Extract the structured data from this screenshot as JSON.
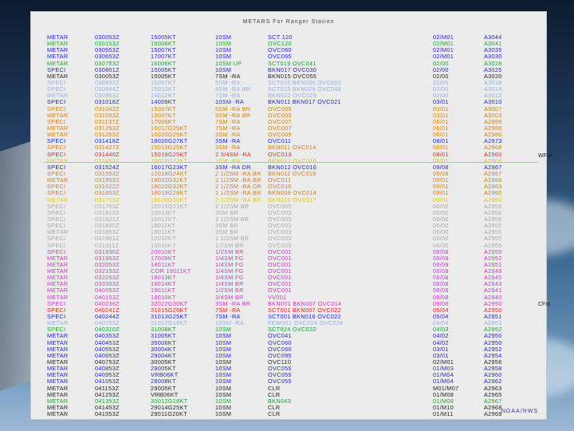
{
  "header": {
    "title": "METARS For Ranger Station"
  },
  "footer": {
    "credit": "NOAA/NWS"
  },
  "markers": {
    "wfnt": "WFnt",
    "cfnt": "CFnt"
  },
  "colors": {
    "black": "#222222",
    "blue": "#2424d6",
    "green": "#17a82a",
    "orange": "#d87b15",
    "red": "#e8261a",
    "pale_blue": "#8fb0e6",
    "gray": "#a8a8a8",
    "magenta": "#cc3cc8",
    "yellow": "#e3c22a"
  },
  "rows": [
    {
      "type": "METAR",
      "time": "030053Z",
      "wind": "15005KT",
      "vis": "10SM",
      "wx": "SCT 120",
      "temp": "02/M01",
      "alt": "A3044",
      "color": "blue"
    },
    {
      "type": "METAR",
      "time": "030153Z",
      "wind": "16008KT",
      "vis": "10SM",
      "wx": "OVC120",
      "temp": "02/M01",
      "alt": "A3041",
      "color": "green"
    },
    {
      "type": "METAR",
      "time": "030553Z",
      "wind": "15007KT",
      "vis": "10SM",
      "wx": "OVC060",
      "temp": "02/M01",
      "alt": "A3035",
      "color": "blue"
    },
    {
      "type": "METAR",
      "time": "030653Z",
      "wind": "17007KT",
      "vis": "10SM",
      "wx": "OVC065",
      "temp": "02/M01",
      "alt": "A3030",
      "color": "blue"
    },
    {
      "type": "METAR",
      "time": "030753Z",
      "wind": "16006KT",
      "vis": "10SM UP",
      "wx": "SCT019 OVC041",
      "temp": "02/00",
      "alt": "A3028",
      "color": "green"
    },
    {
      "type": "SPECI",
      "time": "030801Z",
      "wind": "15005KT",
      "vis": "10SM",
      "wx": "BKN017 OVC030",
      "temp": "02/00",
      "alt": "A3025",
      "color": "blue"
    },
    {
      "type": "METAR",
      "time": "030053Z",
      "wind": "15005KT",
      "vis": "7SM -RA",
      "wx": "BKN015 OVC055",
      "temp": "02/00",
      "alt": "A3020",
      "color": "black"
    },
    {
      "type": "SPECI",
      "time": "030932Z",
      "wind": "15007KT",
      "vis": "5SM -RA",
      "wx": "SCT015 BKN030 OVC050",
      "temp": "02/00",
      "alt": "A3018",
      "color": "pale_blue"
    },
    {
      "type": "SPECI",
      "time": "030944Z",
      "wind": "15010KT",
      "vis": "6SM -RA BR",
      "wx": "SCT015 BKN029 OVC048",
      "temp": "02/00",
      "alt": "A3014",
      "color": "pale_blue"
    },
    {
      "type": "METAR",
      "time": "030953Z",
      "wind": "14012KT",
      "vis": "7SM -RA",
      "wx": "BKN022 OVC029",
      "temp": "02/00",
      "alt": "A3012",
      "color": "pale_blue"
    },
    {
      "type": "SPECI",
      "time": "031018Z",
      "wind": "14009KT",
      "vis": "10SM -RA",
      "wx": "BKN011 BKN017 OVC021",
      "temp": "03/01",
      "alt": "A3010",
      "color": "blue"
    },
    {
      "type": "SPECI",
      "time": "031042Z",
      "wind": "15007KT",
      "vis": "5SM -RA BR",
      "wx": "OVC009",
      "temp": "03/01",
      "alt": "A3007",
      "color": "orange"
    },
    {
      "type": "METAR",
      "time": "031053Z",
      "wind": "13007KT",
      "vis": "5SM -RA BR",
      "wx": "OVC009",
      "temp": "03/01",
      "alt": "A3003",
      "color": "orange"
    },
    {
      "type": "SPECI",
      "time": "031137Z",
      "wind": "17006KT",
      "vis": "7SM -RA",
      "wx": "OVC007",
      "temp": "06/01",
      "alt": "A2998",
      "color": "orange"
    },
    {
      "type": "METAR",
      "time": "031253Z",
      "wind": "16017G25KT",
      "vis": "7SM -RA",
      "wx": "OVC007",
      "temp": "06/01",
      "alt": "A2986",
      "color": "orange"
    },
    {
      "type": "METAR",
      "time": "031253Z",
      "wind": "16020G25KT",
      "vis": "3SM -RA",
      "wx": "OVC009",
      "temp": "06/01",
      "alt": "A2980",
      "color": "orange"
    },
    {
      "type": "SPECI",
      "time": "031418Z",
      "wind": "18020G27KT",
      "vis": "3SM -RA",
      "wx": "OVC011",
      "temp": "08/01",
      "alt": "A2973",
      "color": "blue"
    },
    {
      "type": "SPECI",
      "time": "031427Z",
      "wind": "15015G25KT",
      "vis": "3SM -RA",
      "wx": "BKN011 OVC014",
      "temp": "08/01",
      "alt": "A2968",
      "color": "orange"
    },
    {
      "type": "SPECI",
      "time": "031440Z",
      "wind": "15019G25KT",
      "vis": "2 3/4SM -RA",
      "wx": "OVC013",
      "temp": "08/01",
      "alt": "A2960",
      "color": "red"
    },
    {
      "type": "METAR",
      "time": "031453Z",
      "wind": "16018G23KT",
      "vis": "3SM -RA",
      "wx": "BKN012 OVC016",
      "temp": "08/01",
      "alt": "A2968",
      "color": "yellow"
    },
    {
      "type": "SPECI",
      "time": "031524Z",
      "wind": "16017G23KT",
      "vis": "3SM -RA DR",
      "wx": "BKN012 OVC016",
      "temp": "09/08",
      "alt": "A2967",
      "color": "blue"
    },
    {
      "type": "SPECI",
      "time": "031553Z",
      "wind": "12018G24KT",
      "vis": "2 1/2SM -RA BR",
      "wx": "BKN011 OVC016",
      "temp": "09/08",
      "alt": "A2967",
      "color": "orange"
    },
    {
      "type": "METAR",
      "time": "031553Z",
      "wind": "18022G32KT",
      "vis": "2 1/2SM -RA BR",
      "wx": "OVC011",
      "temp": "09/01",
      "alt": "A2966",
      "color": "orange"
    },
    {
      "type": "SPECI",
      "time": "031622Z",
      "wind": "18022G32KT",
      "vis": "2 1/2SM -RA DR",
      "wx": "OVC010",
      "temp": "09/01",
      "alt": "A2963",
      "color": "orange"
    },
    {
      "type": "SPECI",
      "time": "031653Z",
      "wind": "18019G28KT",
      "vis": "2 1/2SM -RA BR",
      "wx": "BKN009 OVC014",
      "temp": "09/01",
      "alt": "A2960",
      "color": "orange"
    },
    {
      "type": "METAR",
      "time": "031753Z",
      "wind": "18020G30KT",
      "vis": "2 1/2SM -RA BR",
      "wx": "BKN010 OVC017",
      "temp": "09/01",
      "alt": "A2960",
      "color": "yellow"
    },
    {
      "type": "SPECI",
      "time": "031763Z",
      "wind": "10015G21KT",
      "vis": "2 1/2SM BR",
      "wx": "OVC005",
      "temp": "00/00",
      "alt": "A2958",
      "color": "gray"
    },
    {
      "type": "SPECI",
      "time": "031812Z",
      "wind": "19013KT",
      "vis": "3SM BR",
      "wx": "OVC003",
      "temp": "00/00",
      "alt": "A2956",
      "color": "gray"
    },
    {
      "type": "SPECI",
      "time": "031821Z",
      "wind": "19012KT",
      "vis": "2 1/2SM BR",
      "wx": "OVC003",
      "temp": "06/00",
      "alt": "A2956",
      "color": "gray"
    },
    {
      "type": "SPECI",
      "time": "031830Z",
      "wind": "18011KT",
      "vis": "3SM BR",
      "wx": "OVC003",
      "temp": "06/00",
      "alt": "A2955",
      "color": "gray"
    },
    {
      "type": "METAR",
      "time": "031853Z",
      "wind": "18011KT",
      "vis": "3SM BR",
      "wx": "OVC003",
      "temp": "06/00",
      "alt": "A2955",
      "color": "gray"
    },
    {
      "type": "SPECI",
      "time": "031901Z",
      "wind": "19010KT",
      "vis": "1 1/2SM BR",
      "wx": "OVC003",
      "temp": "06/00",
      "alt": "A2955",
      "color": "gray"
    },
    {
      "type": "SPECI",
      "time": "031911Z",
      "wind": "19010KT",
      "vis": "1/2SM BR",
      "wx": "OVC003",
      "temp": "06/00",
      "alt": "A2955",
      "color": "gray"
    },
    {
      "type": "SPECI",
      "time": "031930Z",
      "wind": "20010KT",
      "vis": "1/2SM BR",
      "wx": "OVC001",
      "temp": "08/08",
      "alt": "A2955",
      "color": "magenta"
    },
    {
      "type": "METAR",
      "time": "031953Z",
      "wind": "17009KT",
      "vis": "1/4SM FG",
      "wx": "OVC001",
      "temp": "08/09",
      "alt": "A2952",
      "color": "magenta"
    },
    {
      "type": "METAR",
      "time": "032053Z",
      "wind": "18011KT",
      "vis": "1/4SM FG",
      "wx": "OVC001",
      "temp": "08/09",
      "alt": "A2951",
      "color": "magenta"
    },
    {
      "type": "METAR",
      "time": "032153Z",
      "wind": "COR 19011KT",
      "vis": "1/4SM FG",
      "wx": "OVC001",
      "temp": "08/08",
      "alt": "A2948",
      "color": "magenta"
    },
    {
      "type": "METAR",
      "time": "032253Z",
      "wind": "18013KT",
      "vis": "1/4SM FG",
      "wx": "OVC001",
      "temp": "08/08",
      "alt": "A2945",
      "color": "magenta"
    },
    {
      "type": "METAR",
      "time": "033353Z",
      "wind": "19014KT",
      "vis": "1/4SM BR",
      "wx": "OVC001",
      "temp": "08/08",
      "alt": "A2943",
      "color": "magenta"
    },
    {
      "type": "METAR",
      "time": "040053Z",
      "wind": "19011KT",
      "vis": "1/2SM BR",
      "wx": "OVC001",
      "temp": "08/08",
      "alt": "A2941",
      "color": "magenta"
    },
    {
      "type": "METAR",
      "time": "040153Z",
      "wind": "18010KT",
      "vis": "3/4SM BR",
      "wx": "VV001",
      "temp": "08/08",
      "alt": "A2940",
      "color": "magenta"
    },
    {
      "type": "SPECI",
      "time": "040236Z",
      "wind": "32022G30KT",
      "vis": "3SM -RA BR",
      "wx": "BKN001 BKN007 OVC014",
      "temp": "08/06",
      "alt": "A2950",
      "color": "magenta"
    },
    {
      "type": "SPECI",
      "time": "040241Z",
      "wind": "31015G26KT",
      "vis": "7SM -RA",
      "wx": "SCT001 BKN007 OVC022",
      "temp": "05/04",
      "alt": "A2950",
      "color": "red"
    },
    {
      "type": "SPECI",
      "time": "040244Z",
      "wind": "31013G25KT",
      "vis": "7SM -RA",
      "wx": "SCT001 BKN016 OVC022",
      "temp": "05/04",
      "alt": "A2951",
      "color": "blue"
    },
    {
      "type": "METAR",
      "time": "040253Z",
      "wind": "31012G18KT",
      "vis": "10SM -RA",
      "wx": "FEW001 OVC014 OVC024",
      "temp": "04/04",
      "alt": "A2951",
      "color": "pale_blue"
    },
    {
      "type": "SPECI",
      "time": "040310Z",
      "wind": "31008KT",
      "vis": "10SM",
      "wx": "SCT024 OVC032",
      "temp": "04/03",
      "alt": "A2952",
      "color": "green"
    },
    {
      "type": "METAR",
      "time": "040353Z",
      "wind": "31005KT",
      "vis": "10SM",
      "wx": "OVC041",
      "temp": "04/02",
      "alt": "A2950",
      "color": "blue"
    },
    {
      "type": "METAR",
      "time": "040453Z",
      "wind": "35006KT",
      "vis": "10SM",
      "wx": "OVC060",
      "temp": "04/02",
      "alt": "A2950",
      "color": "blue"
    },
    {
      "type": "METAR",
      "time": "040553Z",
      "wind": "30004KT",
      "vis": "10SM",
      "wx": "OVC060",
      "temp": "03/01",
      "alt": "A2952",
      "color": "blue"
    },
    {
      "type": "METAR",
      "time": "040653Z",
      "wind": "29004KT",
      "vis": "10SM",
      "wx": "OVC095",
      "temp": "03/01",
      "alt": "A2954",
      "color": "blue"
    },
    {
      "type": "METAR",
      "time": "040753Z",
      "wind": "30005KT",
      "vis": "10SM",
      "wx": "OVC110",
      "temp": "02/M01",
      "alt": "A2956",
      "color": "black"
    },
    {
      "type": "METAR",
      "time": "040853Z",
      "wind": "29005KT",
      "vis": "10SM",
      "wx": "OVC055",
      "temp": "01/M03",
      "alt": "A2958",
      "color": "blue"
    },
    {
      "type": "METAR",
      "time": "040953Z",
      "wind": "VRB06KT",
      "vis": "10SM",
      "wx": "OVC055",
      "temp": "01/M04",
      "alt": "A2960",
      "color": "blue"
    },
    {
      "type": "METAR",
      "time": "041053Z",
      "wind": "28008KT",
      "vis": "10SM",
      "wx": "OVC055",
      "temp": "01/M04",
      "alt": "A2962",
      "color": "blue"
    },
    {
      "type": "METAR",
      "time": "041153Z",
      "wind": "29005KT",
      "vis": "10SM",
      "wx": "CLR",
      "temp": "M01/M07",
      "alt": "A2963",
      "color": "black"
    },
    {
      "type": "METAR",
      "time": "041253Z",
      "wind": "VRB06KT",
      "vis": "10SM",
      "wx": "CLR",
      "temp": "01/M08",
      "alt": "A2965",
      "color": "black"
    },
    {
      "type": "METAR",
      "time": "041353Z",
      "wind": "30012G18KT",
      "vis": "10SM",
      "wx": "BKN043",
      "temp": "01/M08",
      "alt": "A2967",
      "color": "green"
    },
    {
      "type": "METAR",
      "time": "041453Z",
      "wind": "29014G25KT",
      "vis": "10SM",
      "wx": "CLR",
      "temp": "01/M10",
      "alt": "A2968",
      "color": "black"
    },
    {
      "type": "METAR",
      "time": "041553Z",
      "wind": "29011G20KT",
      "vis": "10SM",
      "wx": "CLR",
      "temp": "01/M11",
      "alt": "A2969",
      "color": "black"
    }
  ]
}
